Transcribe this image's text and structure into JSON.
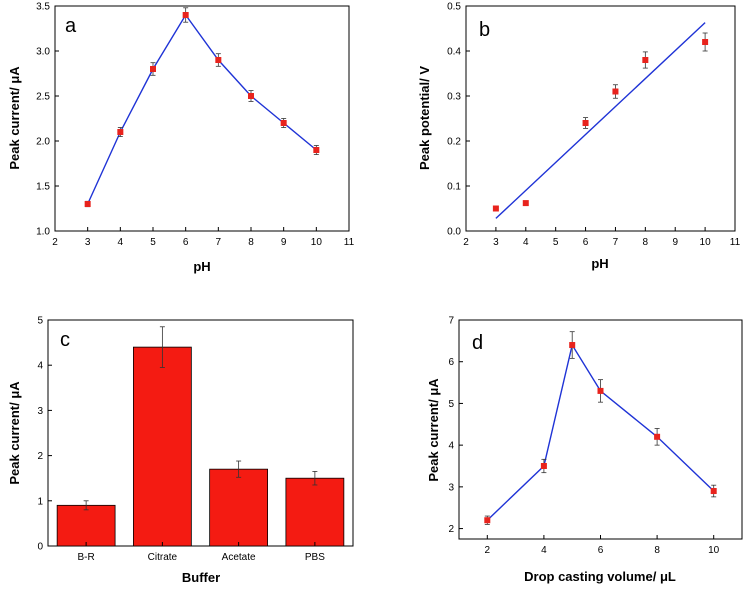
{
  "chart_data": [
    {
      "panel": "a",
      "type": "line",
      "xlabel": "pH",
      "ylabel": "Peak current/ μA",
      "xlim": [
        2,
        11
      ],
      "ylim": [
        1.0,
        3.5
      ],
      "xticks": [
        2,
        3,
        4,
        5,
        6,
        7,
        8,
        9,
        10,
        11
      ],
      "yticks": [
        "1.0",
        "1.5",
        "2.0",
        "2.5",
        "3.0",
        "3.5"
      ],
      "marker_color": "#e8231d",
      "line_color": "#1f33d6",
      "series": [
        {
          "name": "Peak current",
          "x": [
            3,
            4,
            5,
            6,
            7,
            8,
            9,
            10
          ],
          "y": [
            1.3,
            2.1,
            2.8,
            3.4,
            2.9,
            2.5,
            2.2,
            1.9
          ],
          "err": [
            0.03,
            0.05,
            0.07,
            0.08,
            0.07,
            0.06,
            0.05,
            0.05
          ]
        }
      ]
    },
    {
      "panel": "b",
      "type": "scatter",
      "xlabel": "pH",
      "ylabel": "Peak potential/ V",
      "xlim": [
        2,
        11
      ],
      "ylim": [
        0.0,
        0.5
      ],
      "xticks": [
        2,
        3,
        4,
        5,
        6,
        7,
        8,
        9,
        10,
        11
      ],
      "yticks": [
        "0.0",
        "0.1",
        "0.2",
        "0.3",
        "0.4",
        "0.5"
      ],
      "marker_color": "#e8231d",
      "line_color": "#1f33d6",
      "series": [
        {
          "name": "Peak potential",
          "x": [
            3,
            4,
            6,
            7,
            8,
            10
          ],
          "y": [
            0.05,
            0.062,
            0.24,
            0.31,
            0.38,
            0.42
          ],
          "err": [
            0.004,
            0.004,
            0.012,
            0.015,
            0.018,
            0.02
          ]
        }
      ],
      "fit_line": {
        "x": [
          3,
          10
        ],
        "y": [
          0.028,
          0.463
        ]
      }
    },
    {
      "panel": "c",
      "type": "bar",
      "xlabel": "Buffer",
      "ylabel": "Peak current/ μA",
      "ylim": [
        0,
        5
      ],
      "yticks": [
        "0",
        "1",
        "2",
        "3",
        "4",
        "5"
      ],
      "bar_color": "#f41b12",
      "categories": [
        "B-R",
        "Citrate",
        "Acetate",
        "PBS"
      ],
      "values": [
        0.9,
        4.4,
        1.7,
        1.5
      ],
      "err": [
        0.1,
        0.45,
        0.18,
        0.15
      ]
    },
    {
      "panel": "d",
      "type": "line",
      "xlabel": "Drop casting volume/ μL",
      "ylabel": "Peak current/ μA",
      "xlim": [
        1,
        11
      ],
      "ylim": [
        1.75,
        7.0
      ],
      "xticks": [
        2,
        4,
        6,
        8,
        10
      ],
      "yticks": [
        "2",
        "3",
        "4",
        "5",
        "6",
        "7"
      ],
      "marker_color": "#e8231d",
      "line_color": "#1f33d6",
      "series": [
        {
          "name": "Peak current",
          "x": [
            2,
            4,
            5,
            6,
            8,
            10
          ],
          "y": [
            2.2,
            3.5,
            6.4,
            5.3,
            4.2,
            2.9
          ],
          "err": [
            0.1,
            0.16,
            0.32,
            0.27,
            0.2,
            0.14
          ]
        }
      ]
    }
  ]
}
